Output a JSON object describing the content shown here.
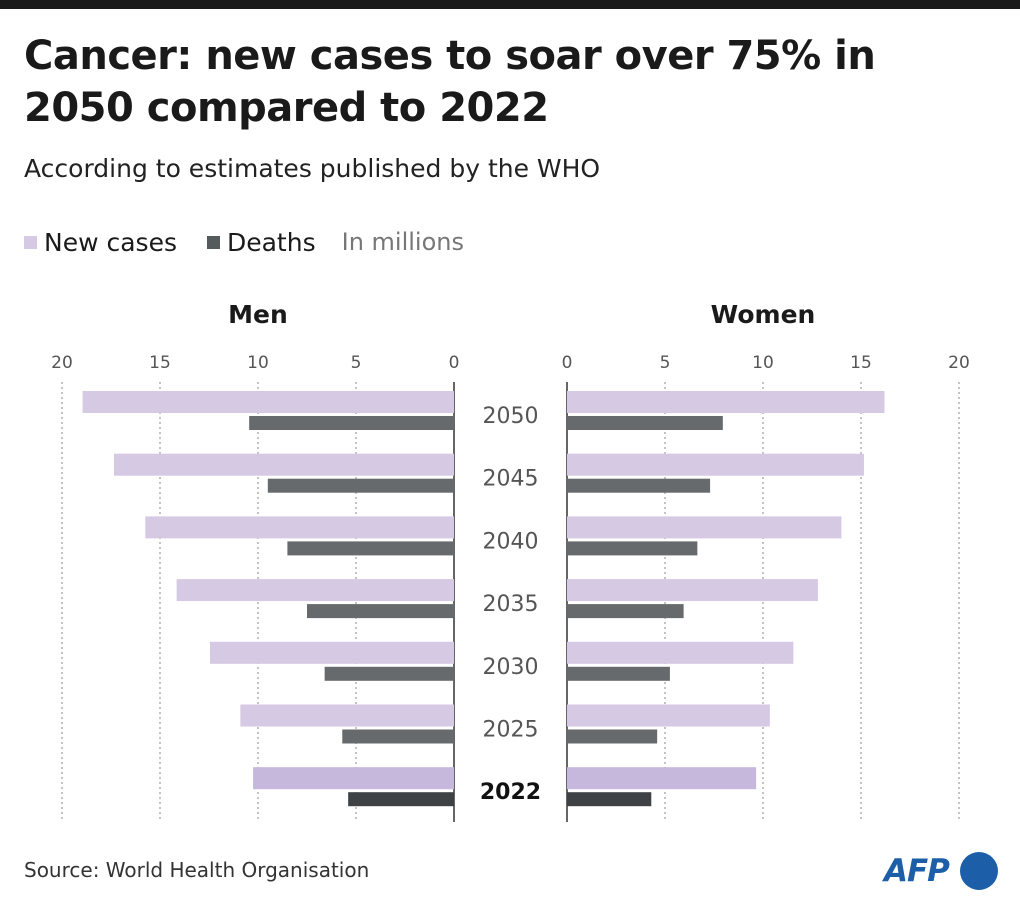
{
  "title": "Cancer: new cases to soar over 75% in 2050 compared to 2022",
  "subtitle": "According to estimates published by the WHO",
  "legend": {
    "new_cases": "New cases",
    "deaths": "Deaths",
    "unit": "In millions"
  },
  "source": "Source: World Health Organisation",
  "logo": "AFP",
  "colors": {
    "new_cases": "#d5c9e3",
    "new_cases_2022": "#c6b7dc",
    "deaths": "#666a6c",
    "deaths_2022": "#3e4245",
    "brand": "#1c5fa8"
  },
  "chart_data": [
    {
      "type": "bar",
      "orientation": "horizontal",
      "direction": "leftward",
      "title": "Men",
      "categories": [
        "2050",
        "2045",
        "2040",
        "2035",
        "2030",
        "2025",
        "2022"
      ],
      "xlim": [
        0,
        20
      ],
      "xticks": [
        "20",
        "15",
        "10",
        "5",
        "0"
      ],
      "grid": true,
      "series": [
        {
          "name": "New cases",
          "values": [
            18.95,
            17.35,
            15.75,
            14.15,
            12.45,
            10.9,
            10.25
          ]
        },
        {
          "name": "Deaths",
          "values": [
            10.45,
            9.5,
            8.5,
            7.5,
            6.6,
            5.7,
            5.4
          ]
        }
      ]
    },
    {
      "type": "bar",
      "orientation": "horizontal",
      "direction": "rightward",
      "title": "Women",
      "categories": [
        "2050",
        "2045",
        "2040",
        "2035",
        "2030",
        "2025",
        "2022"
      ],
      "xlim": [
        0,
        20
      ],
      "xticks": [
        "0",
        "5",
        "10",
        "15",
        "20"
      ],
      "grid": true,
      "series": [
        {
          "name": "New cases",
          "values": [
            16.2,
            15.15,
            14.0,
            12.8,
            11.55,
            10.35,
            9.65
          ]
        },
        {
          "name": "Deaths",
          "values": [
            7.95,
            7.3,
            6.65,
            5.95,
            5.25,
            4.6,
            4.3
          ]
        }
      ]
    }
  ]
}
